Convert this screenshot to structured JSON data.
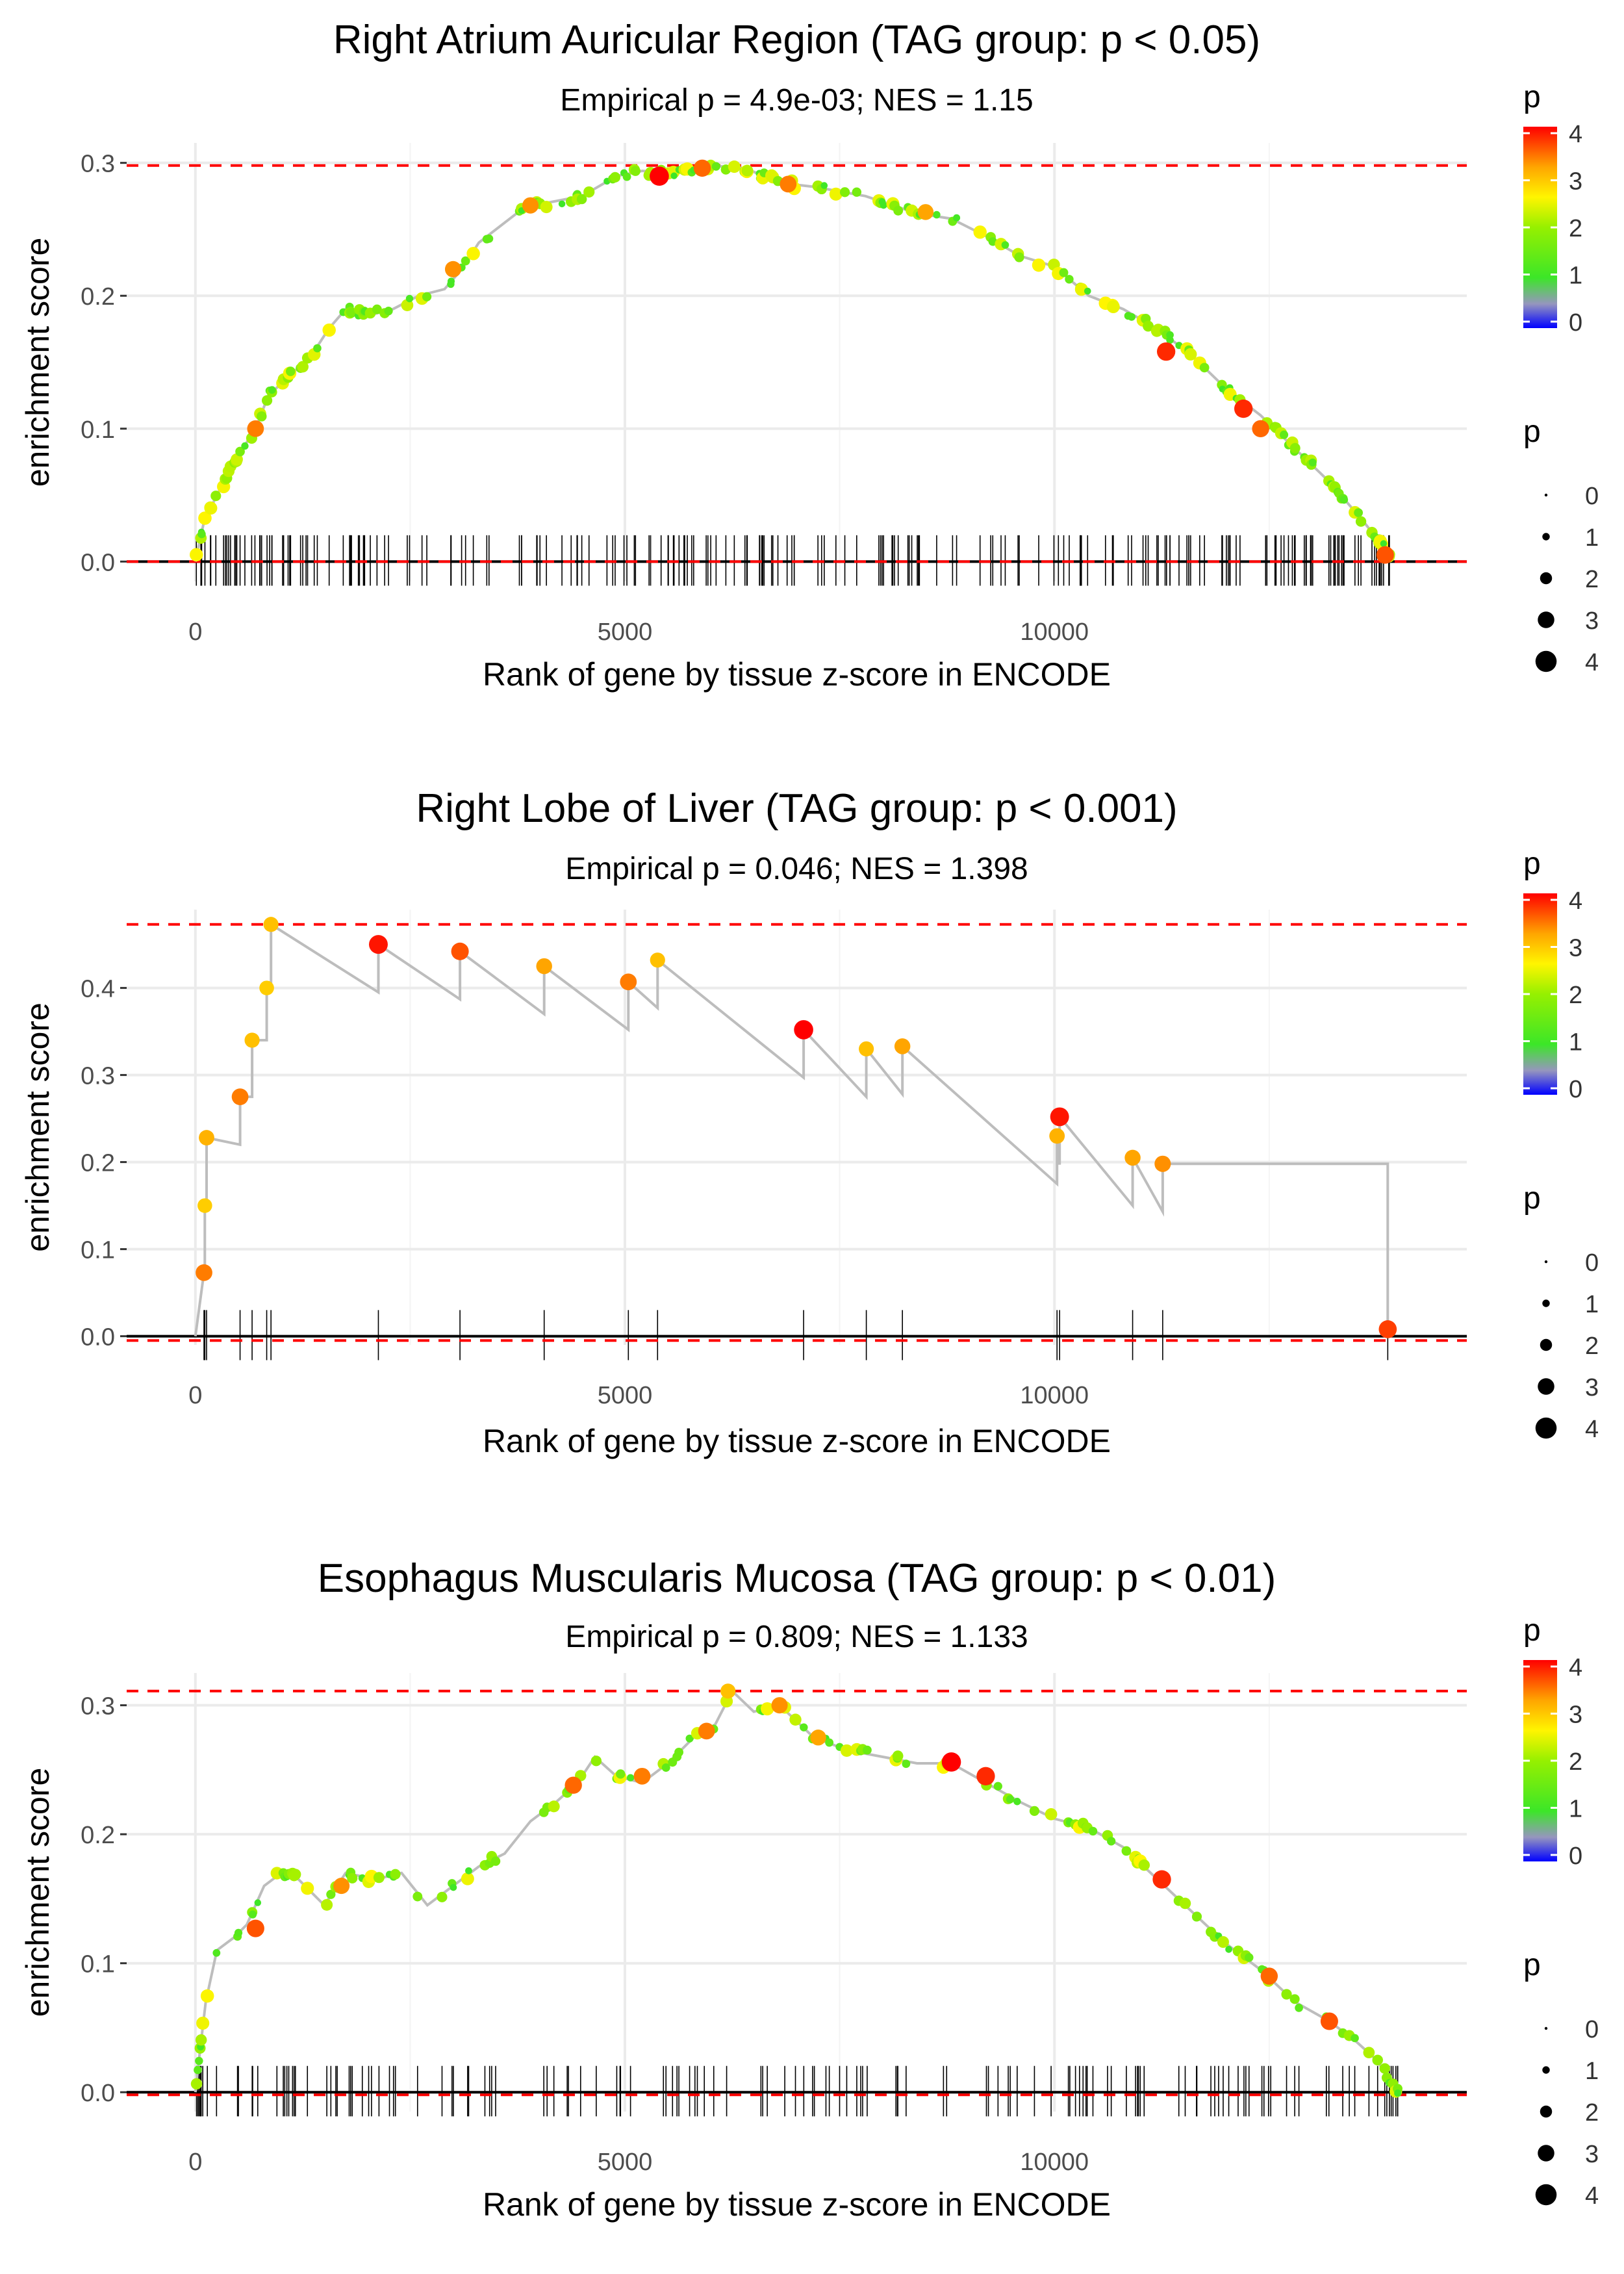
{
  "chart_data": [
    {
      "type": "line",
      "title": "Right Atrium Auricular Region (TAG group: p < 0.05)",
      "subtitle": "Empirical p = 4.9e-03; NES = 1.15",
      "xlabel": "Rank of gene by tissue z-score in ENCODE",
      "ylabel": "enrichment score",
      "xlim": [
        -800,
        14800
      ],
      "ylim": [
        -0.015,
        0.315
      ],
      "xticks": [
        0,
        5000,
        10000
      ],
      "xtick_labels": [
        "0",
        "5000",
        "10000"
      ],
      "yticks": [
        0.0,
        0.1,
        0.2,
        0.3
      ],
      "ytick_labels": [
        "0.0",
        "0.1",
        "0.2",
        "0.3"
      ],
      "max_es_line": 0.298,
      "min_es_line": 0.0,
      "x_end": 13900,
      "dense": true,
      "curve": [
        [
          0,
          0.0
        ],
        [
          100,
          0.03
        ],
        [
          250,
          0.05
        ],
        [
          500,
          0.08
        ],
        [
          700,
          0.1
        ],
        [
          850,
          0.125
        ],
        [
          1100,
          0.14
        ],
        [
          1350,
          0.155
        ],
        [
          1550,
          0.175
        ],
        [
          1750,
          0.19
        ],
        [
          2000,
          0.185
        ],
        [
          2300,
          0.19
        ],
        [
          2600,
          0.2
        ],
        [
          2900,
          0.205
        ],
        [
          3100,
          0.22
        ],
        [
          3300,
          0.24
        ],
        [
          3500,
          0.25
        ],
        [
          3800,
          0.265
        ],
        [
          4100,
          0.27
        ],
        [
          4500,
          0.275
        ],
        [
          4900,
          0.29
        ],
        [
          5200,
          0.294
        ],
        [
          5600,
          0.292
        ],
        [
          6000,
          0.298
        ],
        [
          6400,
          0.296
        ],
        [
          6800,
          0.285
        ],
        [
          7200,
          0.282
        ],
        [
          7800,
          0.275
        ],
        [
          8400,
          0.262
        ],
        [
          8800,
          0.258
        ],
        [
          9200,
          0.245
        ],
        [
          9600,
          0.23
        ],
        [
          10000,
          0.222
        ],
        [
          10400,
          0.2
        ],
        [
          10800,
          0.19
        ],
        [
          11200,
          0.175
        ],
        [
          11600,
          0.155
        ],
        [
          12000,
          0.13
        ],
        [
          12400,
          0.11
        ],
        [
          12800,
          0.085
        ],
        [
          13200,
          0.06
        ],
        [
          13600,
          0.03
        ],
        [
          13900,
          0.005
        ]
      ],
      "highlights": [
        [
          700,
          0.1,
          3.4
        ],
        [
          3000,
          0.22,
          3.3
        ],
        [
          3900,
          0.268,
          3.3
        ],
        [
          5400,
          0.29,
          4.0
        ],
        [
          5900,
          0.296,
          3.5
        ],
        [
          6900,
          0.284,
          3.4
        ],
        [
          11300,
          0.158,
          3.8
        ],
        [
          12200,
          0.115,
          3.8
        ],
        [
          12400,
          0.1,
          3.5
        ],
        [
          13850,
          0.005,
          3.6
        ],
        [
          8500,
          0.263,
          3.2
        ]
      ],
      "hit_count": 230,
      "legend": {
        "color_title": "p",
        "color_ticks": [
          "4",
          "3",
          "2",
          "1",
          "0"
        ],
        "size_title": "p",
        "size_labels": [
          "0",
          "1",
          "2",
          "3",
          "4"
        ]
      }
    },
    {
      "type": "line",
      "title": "Right Lobe of Liver (TAG group: p < 0.001)",
      "subtitle": "Empirical p = 0.046; NES = 1.398",
      "xlabel": "Rank of gene by tissue z-score in ENCODE",
      "ylabel": "enrichment score",
      "xlim": [
        -800,
        14800
      ],
      "ylim": [
        -0.01,
        0.49
      ],
      "xticks": [
        0,
        5000,
        10000
      ],
      "xtick_labels": [
        "0",
        "5000",
        "10000"
      ],
      "yticks": [
        0.0,
        0.1,
        0.2,
        0.3,
        0.4
      ],
      "ytick_labels": [
        "0.0",
        "0.1",
        "0.2",
        "0.3",
        "0.4"
      ],
      "max_es_line": 0.473,
      "min_es_line": -0.005,
      "x_end": 13900,
      "dense": false,
      "hits": [
        [
          100,
          0.073,
          3.4
        ],
        [
          110,
          0.15,
          2.9
        ],
        [
          130,
          0.228,
          3.1
        ],
        [
          520,
          0.275,
          3.4
        ],
        [
          660,
          0.34,
          3.0
        ],
        [
          830,
          0.4,
          2.9
        ],
        [
          880,
          0.473,
          3.0
        ],
        [
          2130,
          0.45,
          3.9
        ],
        [
          3080,
          0.442,
          3.6
        ],
        [
          4060,
          0.425,
          3.2
        ],
        [
          5040,
          0.407,
          3.4
        ],
        [
          5380,
          0.432,
          3.0
        ],
        [
          7080,
          0.352,
          4.0
        ],
        [
          7810,
          0.33,
          3.0
        ],
        [
          8230,
          0.333,
          3.2
        ],
        [
          10030,
          0.23,
          3.1
        ],
        [
          10060,
          0.252,
          3.9
        ],
        [
          10910,
          0.205,
          3.2
        ],
        [
          11260,
          0.198,
          3.3
        ],
        [
          13880,
          0.008,
          3.7
        ]
      ],
      "legend": {
        "color_title": "p",
        "color_ticks": [
          "4",
          "3",
          "2",
          "1",
          "0"
        ],
        "size_title": "p",
        "size_labels": [
          "0",
          "1",
          "2",
          "3",
          "4"
        ]
      }
    },
    {
      "type": "line",
      "title": "Esophagus Muscularis Mucosa (TAG group: p < 0.01)",
      "subtitle": "Empirical p = 0.809; NES = 1.133",
      "xlabel": "Rank of gene by tissue z-score in ENCODE",
      "ylabel": "enrichment score",
      "xlim": [
        -800,
        14800
      ],
      "ylim": [
        -0.015,
        0.325
      ],
      "xticks": [
        0,
        5000,
        10000
      ],
      "xtick_labels": [
        "0",
        "5000",
        "10000"
      ],
      "yticks": [
        0.0,
        0.1,
        0.2,
        0.3
      ],
      "ytick_labels": [
        "0.0",
        "0.1",
        "0.2",
        "0.3"
      ],
      "max_es_line": 0.311,
      "min_es_line": -0.002,
      "x_end": 14000,
      "dense": true,
      "curve": [
        [
          0,
          0.0
        ],
        [
          50,
          0.03
        ],
        [
          120,
          0.07
        ],
        [
          250,
          0.11
        ],
        [
          450,
          0.12
        ],
        [
          600,
          0.13
        ],
        [
          800,
          0.16
        ],
        [
          1000,
          0.17
        ],
        [
          1200,
          0.165
        ],
        [
          1500,
          0.145
        ],
        [
          1750,
          0.17
        ],
        [
          2100,
          0.165
        ],
        [
          2400,
          0.17
        ],
        [
          2700,
          0.145
        ],
        [
          3000,
          0.16
        ],
        [
          3300,
          0.175
        ],
        [
          3600,
          0.185
        ],
        [
          3900,
          0.21
        ],
        [
          4200,
          0.225
        ],
        [
          4450,
          0.24
        ],
        [
          4650,
          0.26
        ],
        [
          4900,
          0.245
        ],
        [
          5200,
          0.24
        ],
        [
          5500,
          0.255
        ],
        [
          5800,
          0.275
        ],
        [
          6050,
          0.285
        ],
        [
          6250,
          0.311
        ],
        [
          6500,
          0.295
        ],
        [
          6800,
          0.3
        ],
        [
          7200,
          0.275
        ],
        [
          7600,
          0.265
        ],
        [
          8000,
          0.26
        ],
        [
          8400,
          0.255
        ],
        [
          8800,
          0.255
        ],
        [
          9200,
          0.24
        ],
        [
          9600,
          0.225
        ],
        [
          10000,
          0.212
        ],
        [
          10400,
          0.205
        ],
        [
          10800,
          0.19
        ],
        [
          11200,
          0.165
        ],
        [
          11600,
          0.14
        ],
        [
          12000,
          0.115
        ],
        [
          12400,
          0.095
        ],
        [
          12800,
          0.07
        ],
        [
          13200,
          0.055
        ],
        [
          13500,
          0.04
        ],
        [
          13750,
          0.025
        ],
        [
          14000,
          0.0
        ]
      ],
      "highlights": [
        [
          700,
          0.127,
          3.6
        ],
        [
          1700,
          0.16,
          3.3
        ],
        [
          4400,
          0.238,
          3.5
        ],
        [
          5200,
          0.245,
          3.4
        ],
        [
          5950,
          0.28,
          3.4
        ],
        [
          6800,
          0.3,
          3.3
        ],
        [
          7250,
          0.275,
          3.2
        ],
        [
          8800,
          0.256,
          4.0
        ],
        [
          9200,
          0.245,
          3.8
        ],
        [
          11250,
          0.165,
          3.8
        ],
        [
          12500,
          0.09,
          3.5
        ],
        [
          13200,
          0.055,
          3.6
        ],
        [
          6200,
          0.311,
          3.0
        ]
      ],
      "hit_count": 150,
      "legend": {
        "color_title": "p",
        "color_ticks": [
          "4",
          "3",
          "2",
          "1",
          "0"
        ],
        "size_title": "p",
        "size_labels": [
          "0",
          "1",
          "2",
          "3",
          "4"
        ]
      }
    }
  ]
}
